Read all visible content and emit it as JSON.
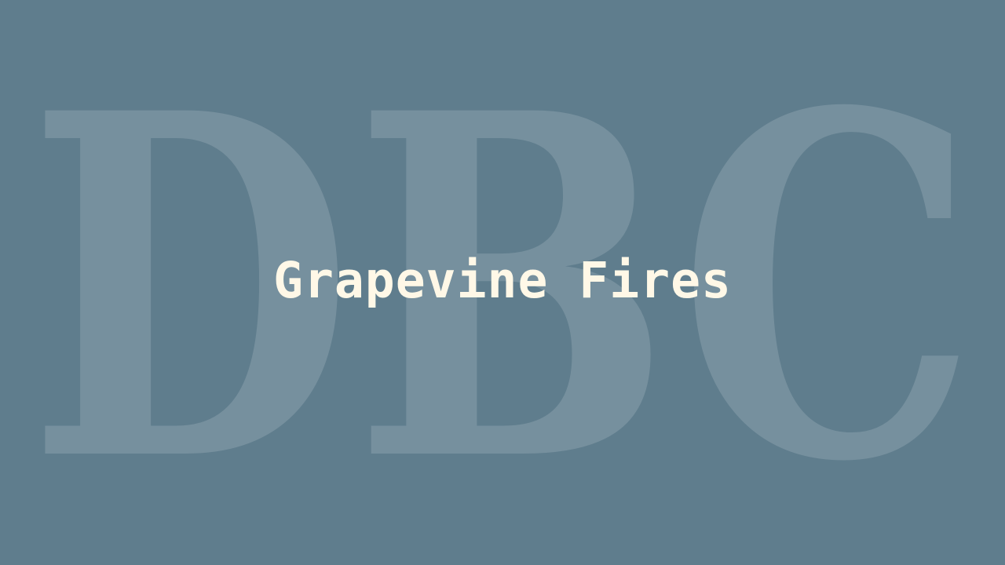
{
  "background_color": "#5f7d8d",
  "watermark": {
    "text": "DBC",
    "color": "#ffffff"
  },
  "title": {
    "text": "Grapevine Fires",
    "color": "#fff8e7"
  }
}
